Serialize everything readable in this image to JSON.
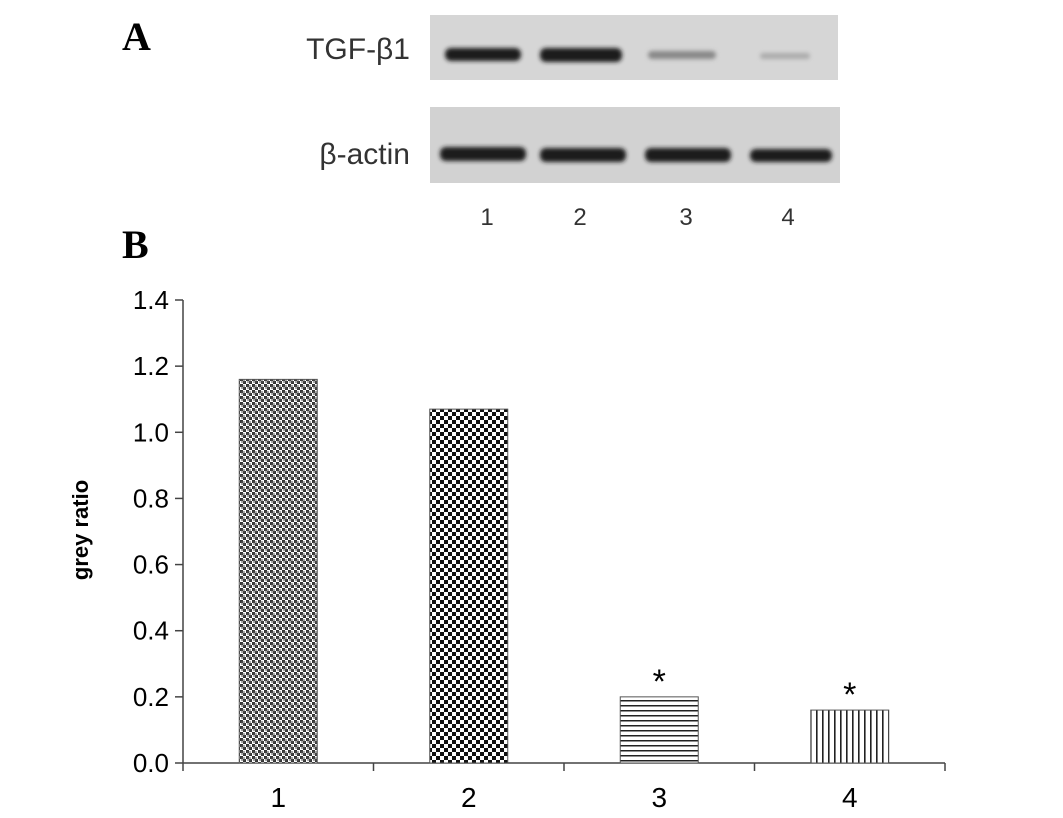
{
  "panels": [
    "A",
    "B"
  ],
  "blot": {
    "rows": [
      "TGF-β1",
      "β-actin"
    ],
    "lanes": [
      "1",
      "2",
      "3",
      "4"
    ]
  },
  "chart_data": {
    "type": "bar",
    "y_label": "grey ratio",
    "categories": [
      "1",
      "2",
      "3",
      "4"
    ],
    "values": [
      1.16,
      1.07,
      0.2,
      0.16
    ],
    "significance": [
      null,
      null,
      "*",
      "*"
    ],
    "ylim": [
      0,
      1.4
    ],
    "yticks": [
      {
        "value": 0,
        "label": "0.0"
      },
      0.2,
      0.4,
      0.6,
      0.8,
      {
        "value": 1,
        "label": "1.0"
      },
      1.2,
      1.4
    ]
  }
}
